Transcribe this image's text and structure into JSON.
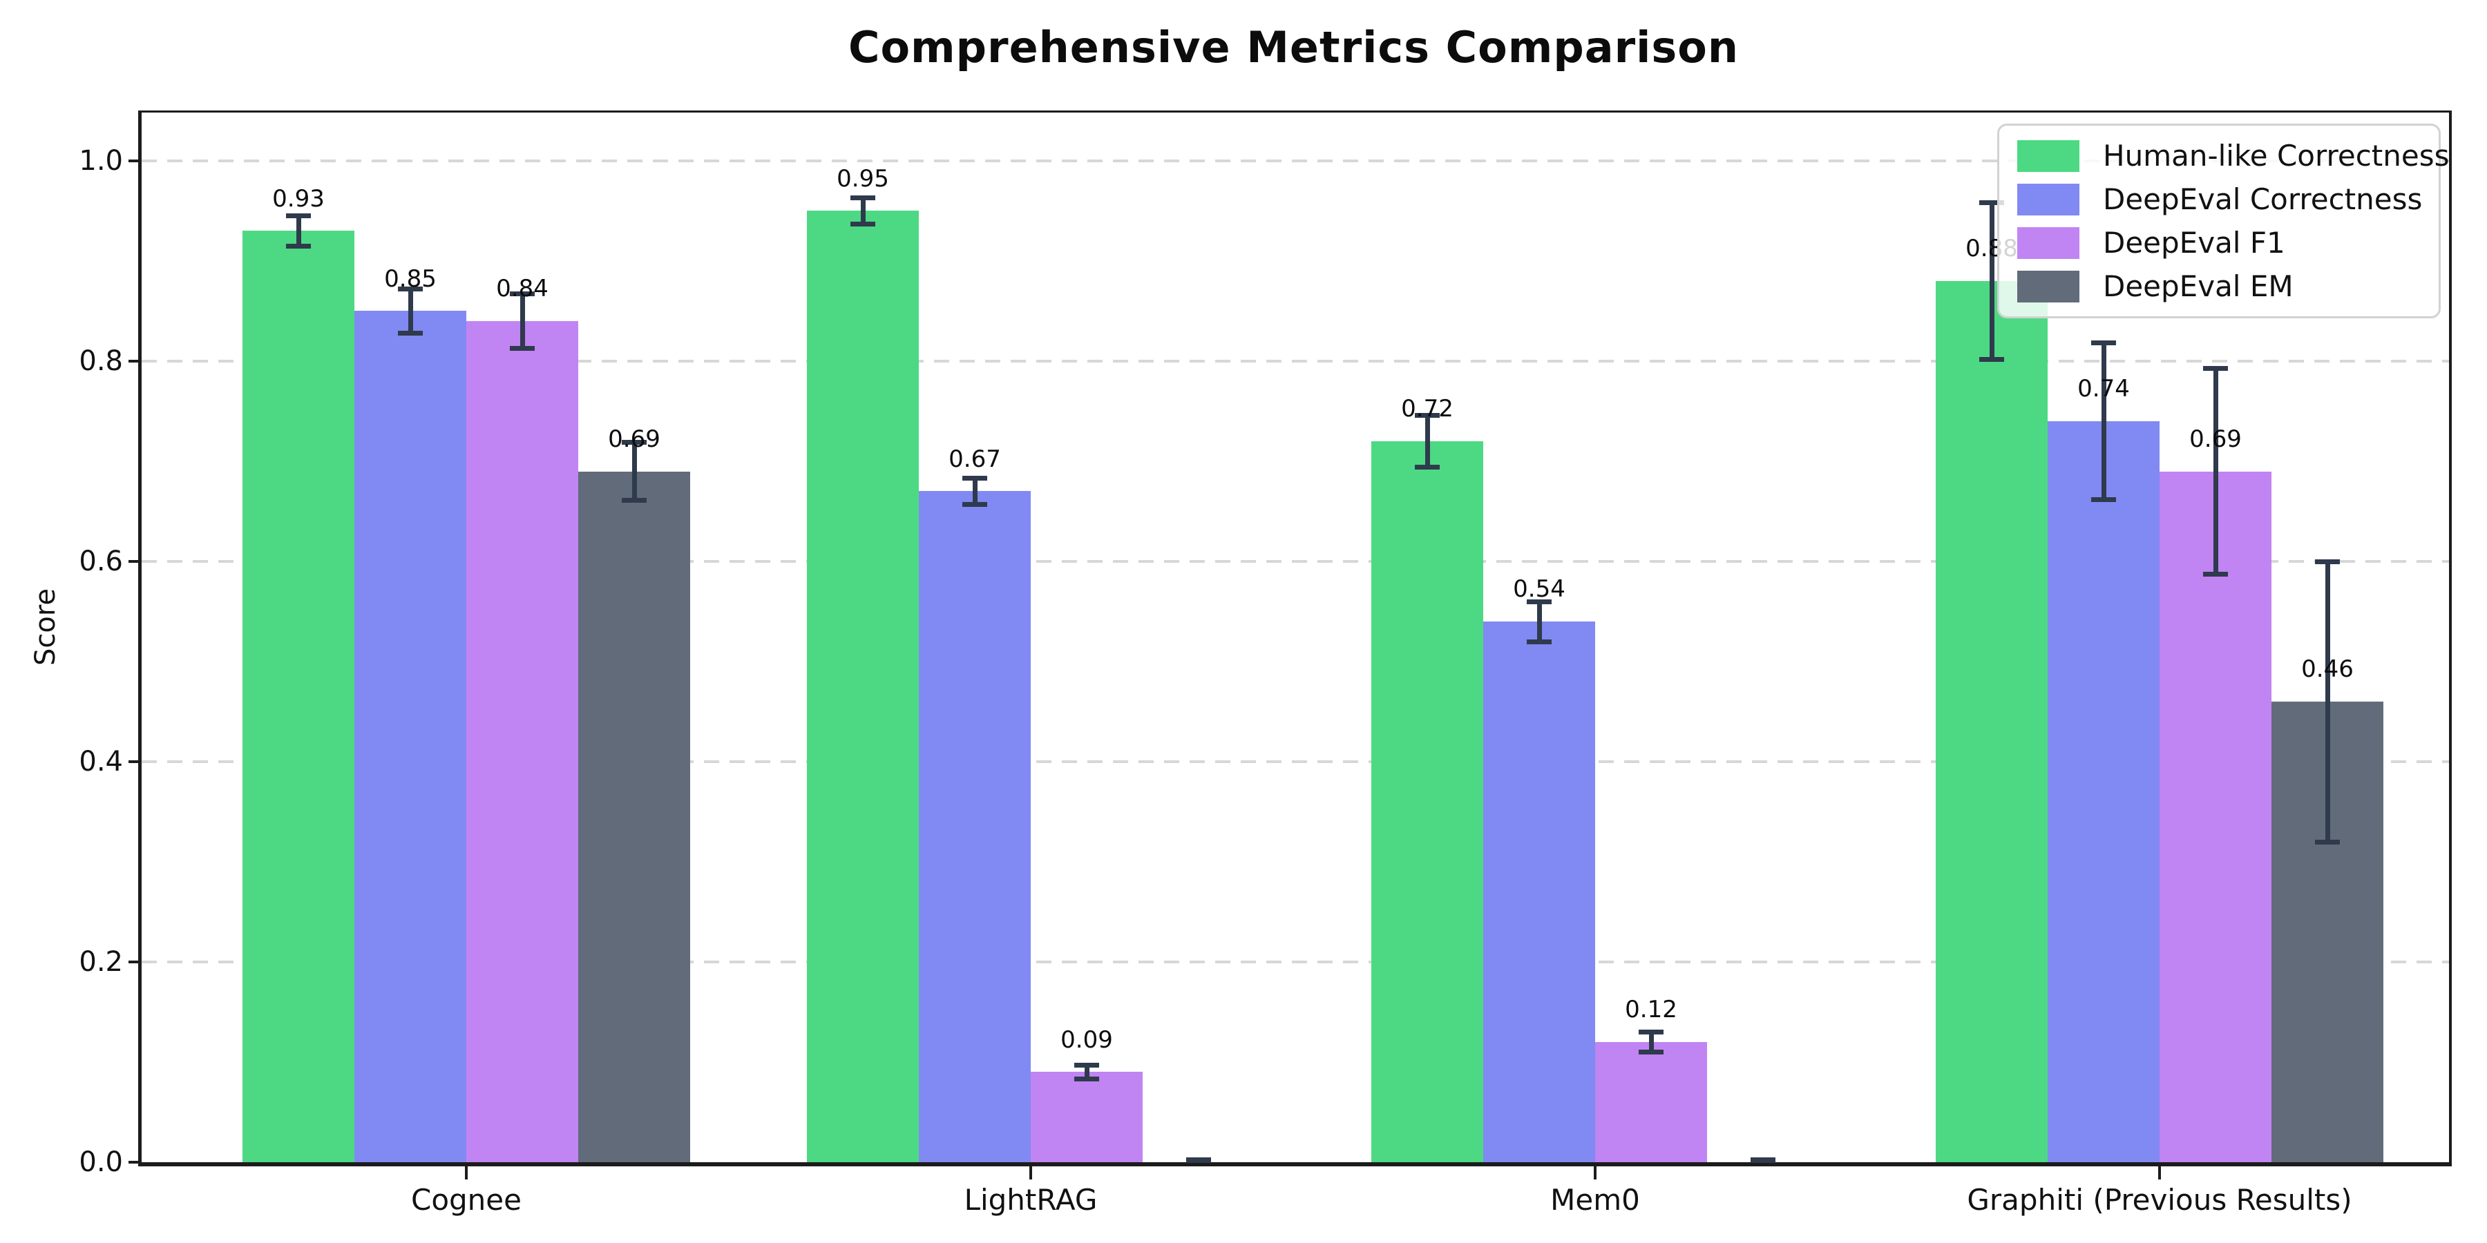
{
  "chart_data": {
    "type": "bar",
    "title": "Comprehensive Metrics Comparison",
    "xlabel": "",
    "ylabel": "Score",
    "categories": [
      "Cognee",
      "LightRAG",
      "Mem0",
      "Graphiti (Previous Results)"
    ],
    "series": [
      {
        "name": "Human-like Correctness",
        "color": "#4dd983",
        "values": [
          0.93,
          0.95,
          0.72,
          0.88
        ],
        "errors": [
          0.015,
          0.013,
          0.026,
          0.078
        ],
        "labels": [
          "0.93",
          "0.95",
          "0.72",
          "0.88"
        ]
      },
      {
        "name": "DeepEval Correctness",
        "color": "#8189f2",
        "values": [
          0.85,
          0.67,
          0.54,
          0.74
        ],
        "errors": [
          0.022,
          0.013,
          0.02,
          0.078
        ],
        "labels": [
          "0.85",
          "0.67",
          "0.54",
          "0.74"
        ]
      },
      {
        "name": "DeepEval F1",
        "color": "#c184f3",
        "values": [
          0.84,
          0.09,
          0.12,
          0.69
        ],
        "errors": [
          0.027,
          0.007,
          0.01,
          0.103
        ],
        "labels": [
          "0.84",
          "0.09",
          "0.12",
          "0.69"
        ]
      },
      {
        "name": "DeepEval EM",
        "color": "#626b79",
        "values": [
          0.69,
          0.0,
          0.0,
          0.46
        ],
        "errors": [
          0.029,
          0.002,
          0.002,
          0.14
        ],
        "labels": [
          "0.69",
          "",
          "",
          "0.46"
        ]
      }
    ],
    "yticks": [
      {
        "value": 0.0,
        "label": "0.0"
      },
      {
        "value": 0.2,
        "label": "0.2"
      },
      {
        "value": 0.4,
        "label": "0.4"
      },
      {
        "value": 0.6,
        "label": "0.6"
      },
      {
        "value": 0.8,
        "label": "0.8"
      },
      {
        "value": 1.0,
        "label": "1.0"
      }
    ],
    "ylim": [
      0,
      1.048
    ],
    "grid": "horizontal-dashed",
    "legend_position": "upper right",
    "error_bar_color": "#2f3a4c"
  }
}
